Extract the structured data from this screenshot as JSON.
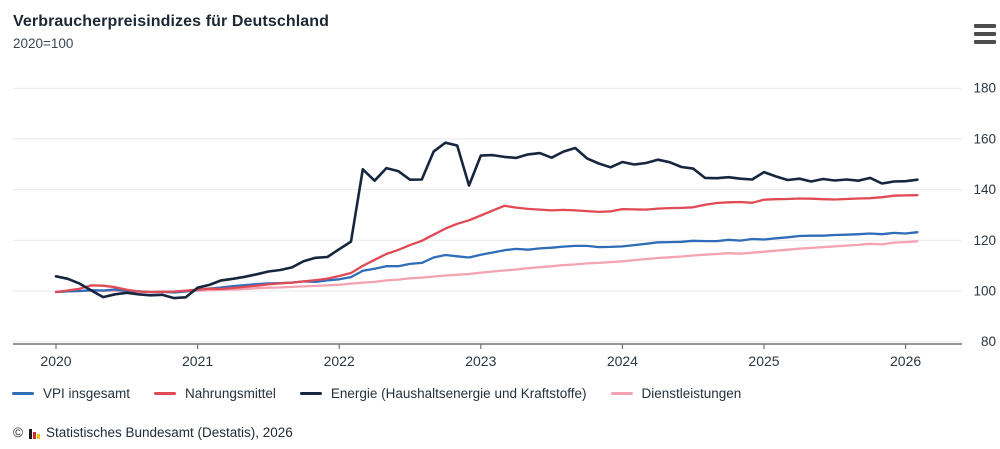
{
  "header": {
    "title": "Verbraucherpreisindizes für Deutschland",
    "subtitle": "2020=100"
  },
  "menu": {
    "icon": "hamburger-menu"
  },
  "chart_data": {
    "type": "line",
    "title": "Verbraucherpreisindizes für Deutschland",
    "index_base": "2020=100",
    "x_unit": "month",
    "x_start": "2020-01",
    "x_end": "2026-02",
    "x_tick_labels": [
      "2020",
      "2021",
      "2022",
      "2023",
      "2024",
      "2025",
      "2026"
    ],
    "y_ticks": [
      180,
      160,
      140,
      120,
      100,
      80
    ],
    "ylim": [
      80,
      180
    ],
    "grid": true,
    "legend_position": "bottom",
    "series": [
      {
        "name": "VPI insgesamt",
        "color": "#2f6db8",
        "values": [
          99.6,
          99.9,
          100.0,
          100.3,
          100.2,
          100.6,
          100.0,
          99.9,
          99.6,
          99.7,
          99.4,
          99.8,
          100.5,
          101.0,
          101.4,
          101.9,
          102.3,
          102.7,
          103.0,
          103.1,
          103.3,
          103.8,
          103.6,
          104.2,
          104.6,
          105.5,
          108.0,
          108.8,
          109.8,
          109.8,
          110.7,
          111.1,
          113.2,
          114.2,
          113.7,
          113.2,
          114.3,
          115.2,
          116.1,
          116.6,
          116.3,
          116.8,
          117.1,
          117.5,
          117.8,
          117.8,
          117.3,
          117.4,
          117.6,
          118.1,
          118.6,
          119.2,
          119.3,
          119.4,
          119.8,
          119.7,
          119.7,
          120.2,
          119.9,
          120.5,
          120.3,
          120.8,
          121.2,
          121.7,
          121.8,
          121.8,
          122.1,
          122.2,
          122.4,
          122.7,
          122.4,
          122.9,
          122.7,
          123.2
        ]
      },
      {
        "name": "Nahrungsmittel",
        "color": "#e04a55",
        "values": [
          99.6,
          100.2,
          100.9,
          102.2,
          102.1,
          101.5,
          100.5,
          99.8,
          99.6,
          99.7,
          99.8,
          100.1,
          100.6,
          100.9,
          100.8,
          101.2,
          101.6,
          102.1,
          102.6,
          103.0,
          103.3,
          103.8,
          104.3,
          104.9,
          105.9,
          107.1,
          109.9,
          112.3,
          114.6,
          116.2,
          118.1,
          119.8,
          122.2,
          124.6,
          126.5,
          127.9,
          129.8,
          131.7,
          133.6,
          132.9,
          132.4,
          132.1,
          131.8,
          132.0,
          131.8,
          131.5,
          131.2,
          131.4,
          132.3,
          132.2,
          132.1,
          132.5,
          132.7,
          132.8,
          133.0,
          134.0,
          134.7,
          135.0,
          135.1,
          134.8,
          136.0,
          136.2,
          136.3,
          136.5,
          136.4,
          136.2,
          136.1,
          136.3,
          136.5,
          136.6,
          137.0,
          137.6,
          137.7,
          137.8
        ]
      },
      {
        "name": "Energie (Haushaltsenergie und Kraftstoffe)",
        "color": "#16263e",
        "values": [
          105.8,
          104.8,
          102.9,
          100.2,
          97.6,
          98.7,
          99.3,
          98.7,
          98.3,
          98.5,
          97.2,
          97.5,
          101.3,
          102.4,
          104.2,
          104.8,
          105.6,
          106.6,
          107.7,
          108.3,
          109.3,
          111.8,
          113.1,
          113.4,
          116.5,
          119.5,
          148.0,
          143.5,
          148.5,
          147.3,
          143.9,
          144.0,
          155.0,
          158.5,
          157.4,
          141.6,
          153.4,
          153.6,
          152.9,
          152.5,
          153.9,
          154.4,
          152.6,
          155.0,
          156.4,
          152.3,
          150.3,
          148.8,
          150.9,
          149.9,
          150.5,
          151.8,
          150.8,
          148.9,
          148.3,
          144.6,
          144.5,
          144.9,
          144.3,
          144.0,
          146.9,
          145.2,
          143.8,
          144.3,
          143.2,
          144.2,
          143.6,
          144.0,
          143.5,
          144.6,
          142.4,
          143.2,
          143.3,
          143.9
        ]
      },
      {
        "name": "Dienstleistungen",
        "color": "#f3a3b2",
        "values": [
          99.7,
          99.9,
          100.0,
          100.1,
          100.0,
          100.1,
          99.9,
          99.8,
          99.6,
          99.6,
          99.7,
          99.9,
          100.1,
          100.3,
          100.5,
          100.6,
          100.8,
          101.1,
          101.3,
          101.4,
          101.6,
          101.8,
          102.0,
          102.2,
          102.5,
          102.9,
          103.3,
          103.6,
          104.2,
          104.5,
          105.0,
          105.3,
          105.7,
          106.1,
          106.4,
          106.7,
          107.2,
          107.7,
          108.1,
          108.5,
          109.0,
          109.4,
          109.8,
          110.2,
          110.5,
          110.9,
          111.1,
          111.4,
          111.7,
          112.2,
          112.6,
          113.0,
          113.3,
          113.6,
          114.0,
          114.3,
          114.6,
          114.9,
          114.7,
          115.1,
          115.5,
          115.9,
          116.3,
          116.7,
          117.0,
          117.3,
          117.6,
          117.9,
          118.2,
          118.6,
          118.4,
          119.1,
          119.3,
          119.6
        ]
      }
    ]
  },
  "colors": {
    "grid": "#eaeaea",
    "axis": "#737373",
    "tick_text": "#2b3640",
    "logo_black": "#1a1a1a",
    "logo_red": "#d22e2e",
    "logo_gold": "#f5c400"
  },
  "footer": {
    "copyright": "©",
    "source": "Statistisches Bundesamt (Destatis), 2026"
  }
}
